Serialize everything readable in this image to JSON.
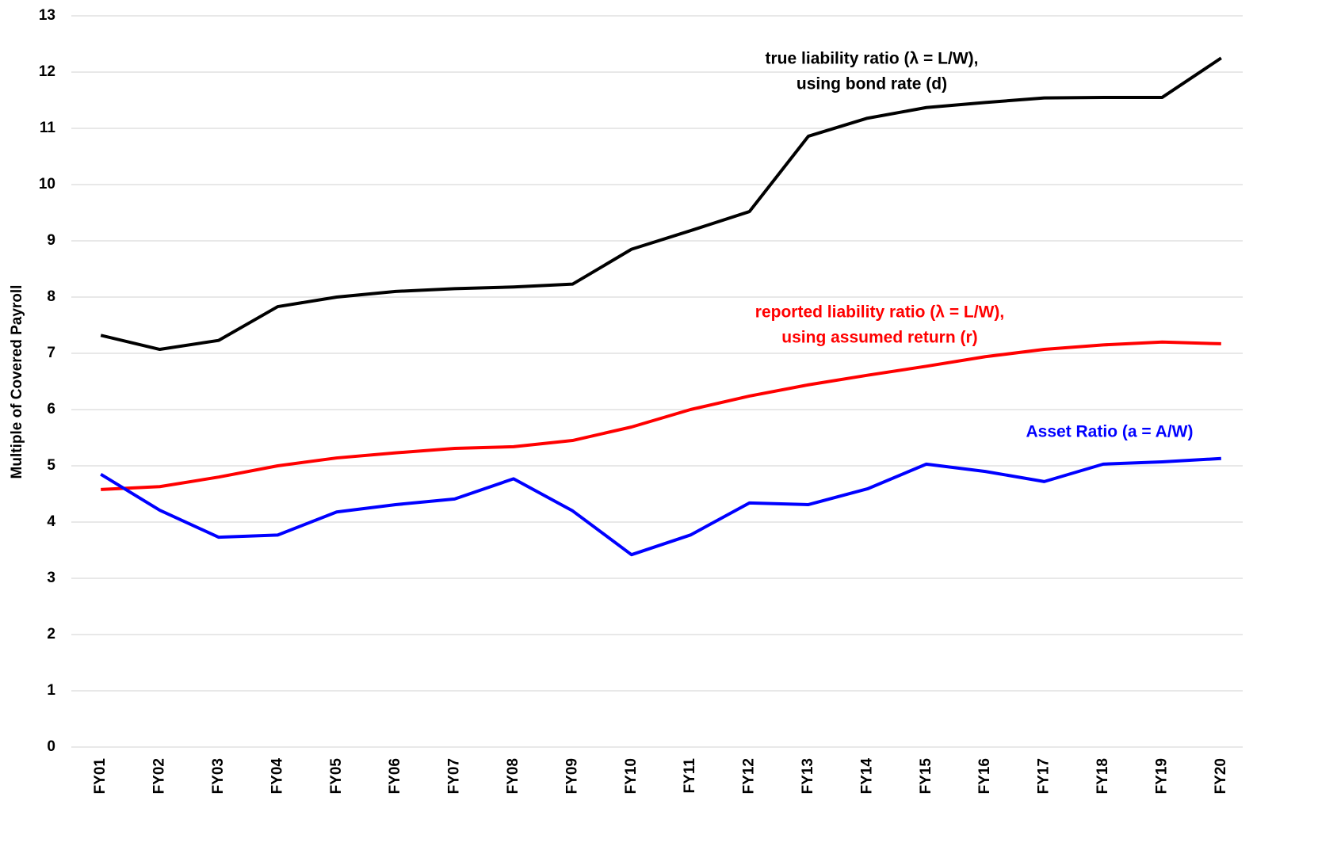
{
  "chart_data": {
    "type": "line",
    "y_label": "Multiple of Covered Payroll",
    "categories": [
      "FY01",
      "FY02",
      "FY03",
      "FY04",
      "FY05",
      "FY06",
      "FY07",
      "FY08",
      "FY09",
      "FY10",
      "FY11",
      "FY12",
      "FY13",
      "FY14",
      "FY15",
      "FY16",
      "FY17",
      "FY18",
      "FY19",
      "FY20"
    ],
    "series": [
      {
        "label": [
          "true liability ratio (λ = L/W),",
          "using bond rate (d)"
        ],
        "color": "#000000",
        "values": [
          7.32,
          7.07,
          7.23,
          7.83,
          8.0,
          8.1,
          8.15,
          8.18,
          8.23,
          8.85,
          9.18,
          9.52,
          10.86,
          11.18,
          11.37,
          11.46,
          11.54,
          11.55,
          11.55,
          12.25
        ]
      },
      {
        "label": [
          "reported liability ratio (λ = L/W),",
          "using assumed return (r)"
        ],
        "color": "#ff0000",
        "values": [
          4.58,
          4.63,
          4.8,
          5.0,
          5.14,
          5.23,
          5.31,
          5.34,
          5.45,
          5.69,
          6.0,
          6.24,
          6.44,
          6.61,
          6.77,
          6.94,
          7.07,
          7.15,
          7.2,
          7.17
        ]
      },
      {
        "label": [
          "Asset Ratio (a = A/W)"
        ],
        "color": "#0000ff",
        "values": [
          4.85,
          4.21,
          3.73,
          3.77,
          4.18,
          4.31,
          4.41,
          4.77,
          4.2,
          3.42,
          3.77,
          4.34,
          4.31,
          4.59,
          5.03,
          4.9,
          4.72,
          5.03,
          5.07,
          5.13
        ]
      }
    ],
    "ylim": [
      0,
      13
    ],
    "yticks": [
      0,
      1,
      2,
      3,
      4,
      5,
      6,
      7,
      8,
      9,
      10,
      11,
      12,
      13
    ],
    "grid": true
  }
}
